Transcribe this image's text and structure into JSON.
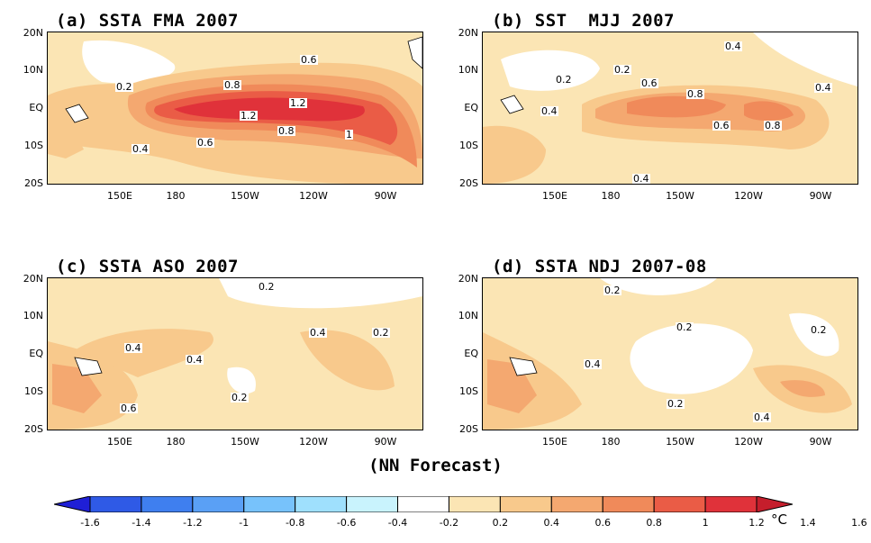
{
  "panels": [
    {
      "id": "a",
      "title": "(a) SSTA FMA 2007",
      "contour_labels": [
        "0.6",
        "0.2",
        "0.8",
        "1.2",
        "1.2",
        "0.6",
        "0.8",
        "1",
        "0.4"
      ]
    },
    {
      "id": "b",
      "title": "(b) SST  MJJ 2007",
      "contour_labels": [
        "0.4",
        "0.2",
        "0.2",
        "0.6",
        "0.8",
        "0.4",
        "0.4",
        "0.6",
        "0.8",
        "0.4"
      ]
    },
    {
      "id": "c",
      "title": "(c) SSTA ASO 2007",
      "contour_labels": [
        "0.2",
        "0.4",
        "0.4",
        "0.2",
        "0.4",
        "0.2",
        "0.6"
      ]
    },
    {
      "id": "d",
      "title": "(d) SSTA NDJ 2007-08",
      "contour_labels": [
        "0.2",
        "0.2",
        "0.2",
        "0.4",
        "0.2",
        "0.4"
      ]
    }
  ],
  "axes": {
    "lat_labels": [
      "20N",
      "10N",
      "EQ",
      "10S",
      "20S"
    ],
    "lon_labels": [
      "150E",
      "180",
      "150W",
      "120W",
      "90W"
    ]
  },
  "footnote": "(NN Forecast)",
  "colorbar": {
    "labels": [
      "-1.6",
      "-1.4",
      "-1.2",
      "-1",
      "-0.8",
      "-0.6",
      "-0.4",
      "-0.2",
      "0.2",
      "0.4",
      "0.6",
      "0.8",
      "1",
      "1.2",
      "1.4",
      "1.6"
    ],
    "unit": "°C",
    "colors": [
      "#1f1fd6",
      "#2f5ae6",
      "#3f7fef",
      "#5aa0f5",
      "#77c2fb",
      "#9fe0fd",
      "#c9f3fd",
      "#ffffff",
      "#fbe5b4",
      "#f8c98c",
      "#f4a870",
      "#f08a5a",
      "#ea5c46",
      "#e0323a",
      "#c51e2c"
    ]
  },
  "colors": {
    "level_0": "#ffffff",
    "level_02": "#fbe5b4",
    "level_04": "#f8c98c",
    "level_06": "#f4a870",
    "level_08": "#f08a5a",
    "level_10": "#ea5c46",
    "level_12": "#e0323a"
  }
}
